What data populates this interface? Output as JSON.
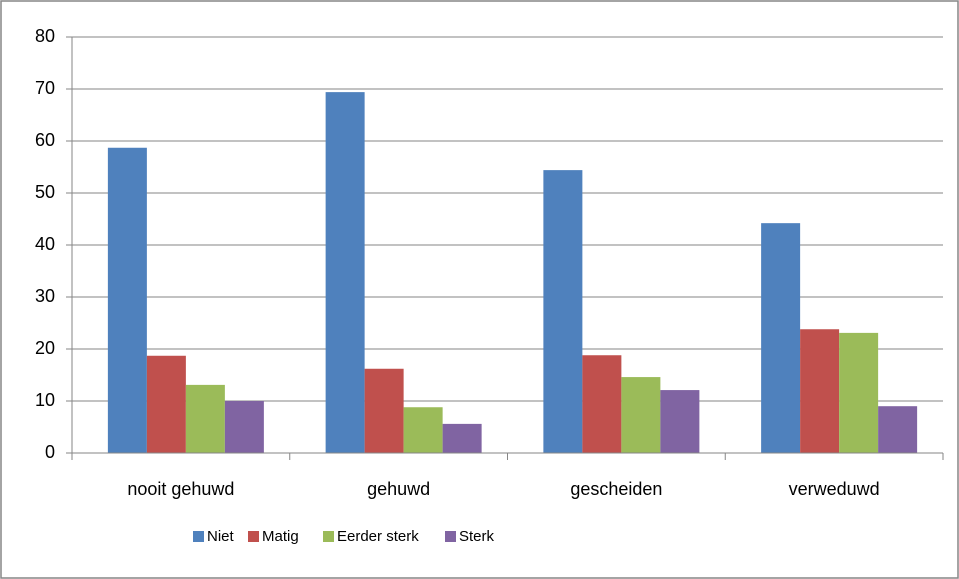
{
  "chart_data": {
    "type": "bar",
    "categories": [
      "nooit gehuwd",
      "gehuwd",
      "gescheiden",
      "verweduwd"
    ],
    "series": [
      {
        "name": "Niet",
        "color": "#4f81bd",
        "values": [
          58.7,
          69.4,
          54.4,
          44.2
        ]
      },
      {
        "name": "Matig",
        "color": "#c0504d",
        "values": [
          18.7,
          16.2,
          18.8,
          23.8
        ]
      },
      {
        "name": "Eerder sterk",
        "color": "#9bbb59",
        "values": [
          13.1,
          8.8,
          14.6,
          23.1
        ]
      },
      {
        "name": "Sterk",
        "color": "#8064a2",
        "values": [
          10.0,
          5.6,
          12.1,
          9.0
        ]
      }
    ],
    "ylim": [
      0,
      80
    ],
    "yticks": [
      0,
      10,
      20,
      30,
      40,
      50,
      60,
      70,
      80
    ],
    "grid": true,
    "legend": "bottom"
  }
}
